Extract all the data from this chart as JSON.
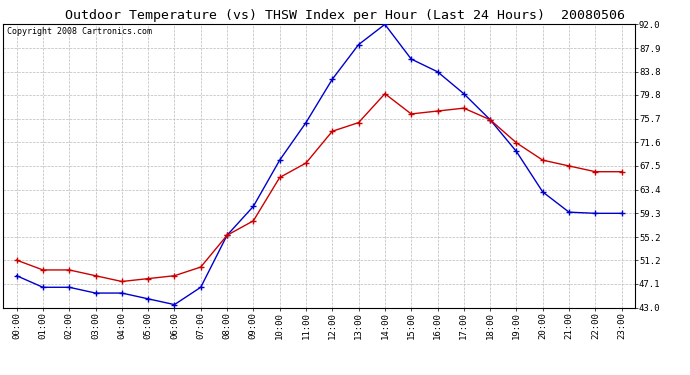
{
  "title": "Outdoor Temperature (vs) THSW Index per Hour (Last 24 Hours)  20080506",
  "copyright": "Copyright 2008 Cartronics.com",
  "hours": [
    "00:00",
    "01:00",
    "02:00",
    "03:00",
    "04:00",
    "05:00",
    "06:00",
    "07:00",
    "08:00",
    "09:00",
    "10:00",
    "11:00",
    "12:00",
    "13:00",
    "14:00",
    "15:00",
    "16:00",
    "17:00",
    "18:00",
    "19:00",
    "20:00",
    "21:00",
    "22:00",
    "23:00"
  ],
  "temp_red": [
    51.2,
    49.5,
    49.5,
    48.5,
    47.5,
    48.0,
    48.5,
    50.0,
    55.5,
    58.0,
    65.5,
    68.0,
    73.5,
    75.0,
    80.0,
    76.5,
    77.0,
    77.5,
    75.5,
    71.5,
    68.5,
    67.5,
    66.5,
    66.5
  ],
  "thsw_blue": [
    48.5,
    46.5,
    46.5,
    45.5,
    45.5,
    44.5,
    43.5,
    46.5,
    55.5,
    60.5,
    68.5,
    75.0,
    82.5,
    88.5,
    92.0,
    86.0,
    83.8,
    80.0,
    75.5,
    70.0,
    63.0,
    59.5,
    59.3,
    59.3
  ],
  "ylim_min": 43.0,
  "ylim_max": 92.0,
  "yticks": [
    43.0,
    47.1,
    51.2,
    55.2,
    59.3,
    63.4,
    67.5,
    71.6,
    75.7,
    79.8,
    83.8,
    87.9,
    92.0
  ],
  "bg_color": "#ffffff",
  "plot_bg_color": "#ffffff",
  "grid_color": "#bbbbbb",
  "red_color": "#cc0000",
  "blue_color": "#0000cc",
  "title_fontsize": 9.5,
  "tick_fontsize": 6.5,
  "copyright_fontsize": 6.0
}
